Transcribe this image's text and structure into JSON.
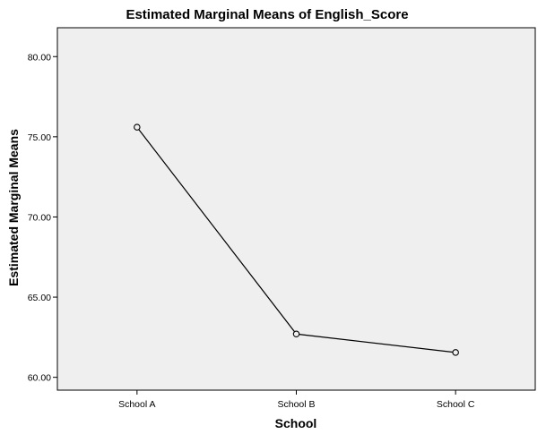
{
  "chart_data": {
    "type": "line",
    "title": "Estimated Marginal Means of English_Score",
    "xlabel": "School",
    "ylabel": "Estimated Marginal Means",
    "categories": [
      "School A",
      "School B",
      "School C"
    ],
    "series": [
      {
        "values": [
          75.6,
          62.7,
          61.55
        ]
      }
    ],
    "ylim": [
      59.2,
      81.8
    ],
    "yticks": [
      60,
      65,
      70,
      75,
      80
    ],
    "ytick_labels": [
      "60.00",
      "65.00",
      "70.00",
      "75.00",
      "80.00"
    ],
    "grid": false,
    "legend": "none",
    "marker": "open-circle",
    "colors": {
      "plot_background": "#efefef",
      "line": "#000000",
      "axis": "#000000"
    }
  }
}
